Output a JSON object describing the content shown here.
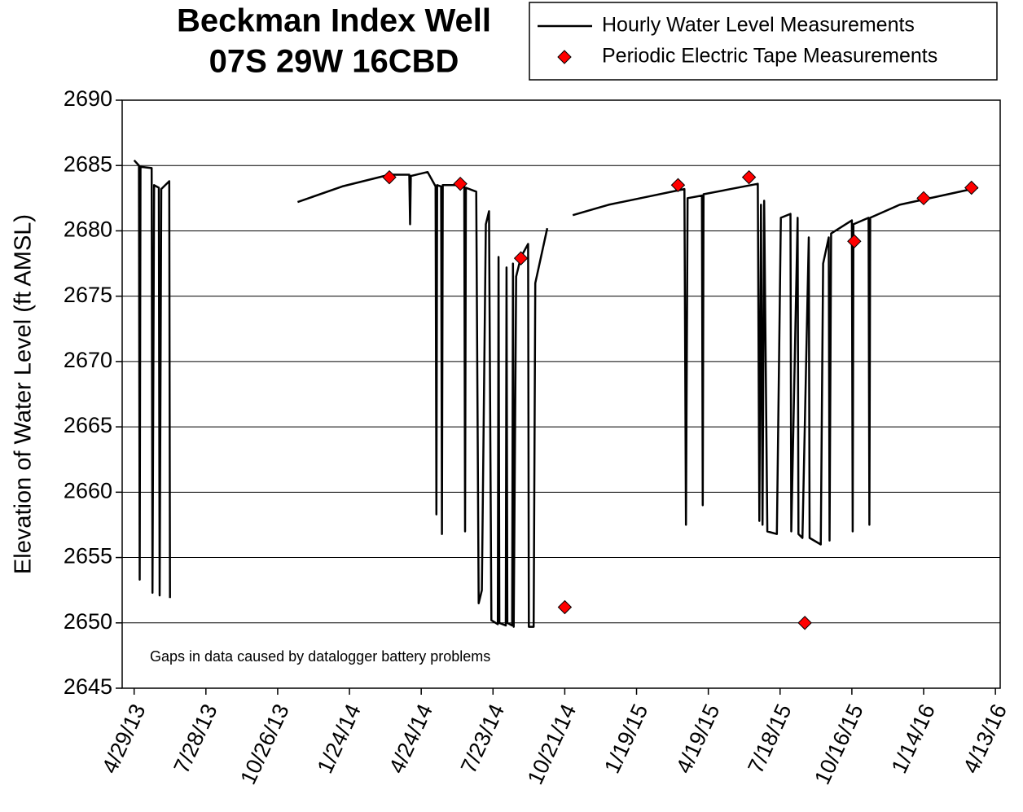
{
  "chart_data": {
    "type": "line",
    "title": "Beckman Index Well",
    "subtitle": "07S 29W 16CBD",
    "y_label": "Elevation of Water Level (ft AMSL)",
    "annotation": "Gaps in data caused by datalogger battery problems",
    "xlim": [
      "2013-04-14",
      "2016-04-19"
    ],
    "ylim": [
      2645,
      2690
    ],
    "yticks": [
      2645,
      2650,
      2655,
      2660,
      2665,
      2670,
      2675,
      2680,
      2685,
      2690
    ],
    "xticks": [
      {
        "value": "2013-04-29",
        "label": "4/29/13"
      },
      {
        "value": "2013-07-28",
        "label": "7/28/13"
      },
      {
        "value": "2013-10-26",
        "label": "10/26/13"
      },
      {
        "value": "2014-01-24",
        "label": "1/24/14"
      },
      {
        "value": "2014-04-24",
        "label": "4/24/14"
      },
      {
        "value": "2014-07-23",
        "label": "7/23/14"
      },
      {
        "value": "2014-10-21",
        "label": "10/21/14"
      },
      {
        "value": "2015-01-19",
        "label": "1/19/15"
      },
      {
        "value": "2015-04-19",
        "label": "4/19/15"
      },
      {
        "value": "2015-07-18",
        "label": "7/18/15"
      },
      {
        "value": "2015-10-16",
        "label": "10/16/15"
      },
      {
        "value": "2016-01-14",
        "label": "1/14/16"
      },
      {
        "value": "2016-04-13",
        "label": "4/13/16"
      }
    ],
    "grid": true,
    "legend": "top-right",
    "series": [
      {
        "name": "Hourly Water Level Measurements",
        "type": "line",
        "color": "#000000",
        "x": [
          "2013-04-29",
          "2013-05-05",
          "2013-05-06",
          "2013-05-07",
          "2013-05-21",
          "2013-05-22",
          "2013-05-24",
          "2013-05-30",
          "2013-05-31",
          "2013-06-02",
          "2013-06-12",
          "2013-06-13",
          "2013-08-01",
          "2013-11-20",
          "2014-01-15",
          "2014-03-15",
          "2014-04-09",
          "2014-04-10",
          "2014-04-11",
          "2014-05-02",
          "2014-05-12",
          "2014-05-13",
          "2014-05-14",
          "2014-05-19",
          "2014-05-20",
          "2014-05-21",
          "2014-06-17",
          "2014-06-18",
          "2014-06-19",
          "2014-07-02",
          "2014-07-05",
          "2014-07-09",
          "2014-07-14",
          "2014-07-18",
          "2014-07-21",
          "2014-07-29",
          "2014-07-30",
          "2014-07-31",
          "2014-08-08",
          "2014-08-09",
          "2014-08-10",
          "2014-08-16",
          "2014-08-17",
          "2014-08-18",
          "2014-08-21",
          "2014-08-27",
          "2014-09-05",
          "2014-09-06",
          "2014-09-12",
          "2014-09-14",
          "2014-09-29",
          "2014-10-15",
          "2014-10-31",
          "2014-12-15",
          "2015-02-01",
          "2015-03-20",
          "2015-03-22",
          "2015-03-24",
          "2015-04-11",
          "2015-04-12",
          "2015-04-13",
          "2015-06-20",
          "2015-06-22",
          "2015-06-24",
          "2015-06-26",
          "2015-06-28",
          "2015-07-02",
          "2015-07-14",
          "2015-07-19",
          "2015-07-31",
          "2015-08-01",
          "2015-08-09",
          "2015-08-10",
          "2015-08-15",
          "2015-08-23",
          "2015-08-24",
          "2015-09-07",
          "2015-09-10",
          "2015-09-17",
          "2015-09-18",
          "2015-09-20",
          "2015-10-16",
          "2015-10-17",
          "2015-10-18",
          "2015-11-06",
          "2015-11-07",
          "2015-11-08",
          "2015-12-15",
          "2016-03-22"
        ],
        "values": [
          2685.4,
          2685,
          2653.3,
          2684.9,
          2684.8,
          2652.3,
          2683.5,
          2683.3,
          2652.1,
          2683.2,
          2683.8,
          2651.9,
          null,
          2682.2,
          2683.4,
          2684.3,
          2684.3,
          2680.5,
          2684.2,
          2684.5,
          2683.4,
          2658.3,
          2683.5,
          2683.4,
          2656.8,
          2683.5,
          2683.5,
          2657,
          2683.3,
          2683,
          2651.5,
          2652.5,
          2680.5,
          2681.5,
          2650.2,
          2649.9,
          2678,
          2650,
          2649.8,
          2677.2,
          2650,
          2649.8,
          2677.5,
          2649.7,
          2676.5,
          2678,
          2679,
          2649.7,
          2649.7,
          2676,
          2680.2,
          null,
          2681.2,
          2682,
          2682.6,
          2683.2,
          2657.5,
          2682.5,
          2682.7,
          2659,
          2682.8,
          2683.6,
          2657.8,
          2682,
          2657.5,
          2682.3,
          2657,
          2656.8,
          2681,
          2681.3,
          2657,
          2681,
          2656.8,
          2656.5,
          2679.5,
          2656.5,
          2656,
          2677.5,
          2679.5,
          2656.3,
          2679.8,
          2680.8,
          2657,
          2680.5,
          2681,
          2657.5,
          2681,
          2682,
          2683.3
        ]
      },
      {
        "name": "Periodic Electric Tape Measurements",
        "type": "scatter",
        "color": "#ff0000",
        "x": [
          "2014-03-15",
          "2014-06-12",
          "2014-08-27",
          "2014-10-21",
          "2015-03-12",
          "2015-06-09",
          "2015-08-18",
          "2015-10-19",
          "2016-01-14",
          "2016-03-14"
        ],
        "values": [
          2684.1,
          2683.6,
          2677.9,
          2651.2,
          2683.5,
          2684.1,
          2650.0,
          2679.2,
          2682.5,
          2683.3
        ]
      }
    ]
  }
}
